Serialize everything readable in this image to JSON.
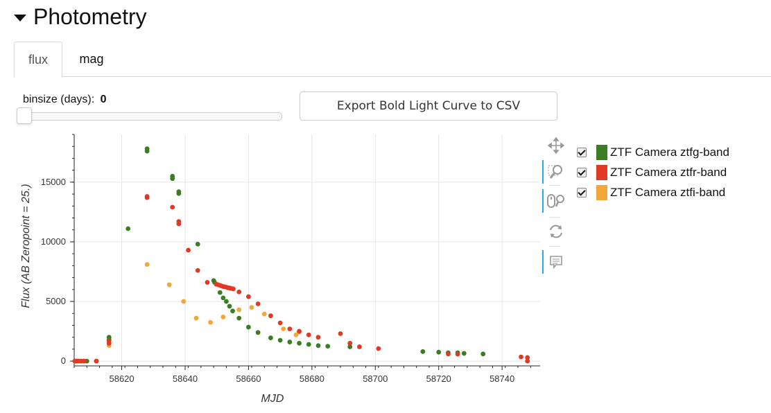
{
  "section": {
    "title": "Photometry"
  },
  "tabs": [
    {
      "label": "flux"
    },
    {
      "label": "mag"
    }
  ],
  "binsize": {
    "label": "binsize (days):",
    "value": "0"
  },
  "export_button": {
    "label": "Export Bold Light Curve to CSV"
  },
  "toolbar": {
    "tools": [
      "pan-icon",
      "box-zoom-icon",
      "wheel-zoom-icon",
      "reset-icon",
      "hover-icon"
    ]
  },
  "chart_data": {
    "type": "scatter",
    "xlabel": "MJD",
    "ylabel": "Flux (AB Zeropoint = 25.)",
    "xlim": [
      58605,
      58752
    ],
    "ylim": [
      -400,
      19000
    ],
    "xticks": [
      58620,
      58640,
      58660,
      58680,
      58700,
      58720,
      58740
    ],
    "yticks": [
      0,
      5000,
      10000,
      15000
    ],
    "grid": true,
    "legend_position": "right",
    "series": [
      {
        "name": "ZTF Camera ztfg-band",
        "color": "#3a7d22",
        "points": [
          [
            58605.5,
            0
          ],
          [
            58606.2,
            0
          ],
          [
            58607,
            0
          ],
          [
            58608,
            0
          ],
          [
            58609,
            0
          ],
          [
            58612,
            0
          ],
          [
            58616,
            2000
          ],
          [
            58616,
            1800
          ],
          [
            58622,
            11100
          ],
          [
            58628,
            17800
          ],
          [
            58628,
            17600
          ],
          [
            58636,
            15500
          ],
          [
            58636,
            15300
          ],
          [
            58638,
            14200
          ],
          [
            58638,
            14050
          ],
          [
            58644,
            9800
          ],
          [
            58649,
            6750
          ],
          [
            58649.3,
            6600
          ],
          [
            58651,
            5750
          ],
          [
            58652,
            5300
          ],
          [
            58653,
            5000
          ],
          [
            58654,
            4600
          ],
          [
            58655,
            4200
          ],
          [
            58657,
            3600
          ],
          [
            58660,
            2850
          ],
          [
            58663,
            2400
          ],
          [
            58667,
            1950
          ],
          [
            58670,
            1750
          ],
          [
            58673,
            1600
          ],
          [
            58676,
            1500
          ],
          [
            58679,
            1400
          ],
          [
            58682,
            1300
          ],
          [
            58685,
            1250
          ],
          [
            58692,
            1200
          ],
          [
            58715,
            800
          ],
          [
            58720,
            750
          ],
          [
            58723,
            700
          ],
          [
            58726,
            700
          ],
          [
            58728,
            650
          ],
          [
            58734,
            600
          ]
        ]
      },
      {
        "name": "ZTF Camera ztfr-band",
        "color": "#e03a24",
        "points": [
          [
            58605.2,
            0
          ],
          [
            58605.7,
            0
          ],
          [
            58606.5,
            0
          ],
          [
            58607.3,
            0
          ],
          [
            58608.2,
            0
          ],
          [
            58612,
            0
          ],
          [
            58616,
            1700
          ],
          [
            58616,
            1500
          ],
          [
            58628,
            13800
          ],
          [
            58628,
            13700
          ],
          [
            58636,
            12900
          ],
          [
            58638,
            11700
          ],
          [
            58638,
            11500
          ],
          [
            58641,
            9300
          ],
          [
            58644,
            7600
          ],
          [
            58647,
            6600
          ],
          [
            58649.8,
            6450
          ],
          [
            58650.4,
            6400
          ],
          [
            58651,
            6350
          ],
          [
            58651.5,
            6300
          ],
          [
            58652,
            6250
          ],
          [
            58652.5,
            6230
          ],
          [
            58653,
            6200
          ],
          [
            58653.5,
            6150
          ],
          [
            58654,
            6130
          ],
          [
            58654.5,
            6100
          ],
          [
            58655.2,
            6050
          ],
          [
            58657,
            5800
          ],
          [
            58660,
            5400
          ],
          [
            58663,
            4800
          ],
          [
            58667,
            3800
          ],
          [
            58670,
            3200
          ],
          [
            58673,
            2700
          ],
          [
            58676,
            2500
          ],
          [
            58679,
            2200
          ],
          [
            58682,
            2000
          ],
          [
            58689,
            2300
          ],
          [
            58692,
            1500
          ],
          [
            58695,
            1200
          ],
          [
            58701,
            1050
          ],
          [
            58723,
            600
          ],
          [
            58726,
            580
          ],
          [
            58746,
            350
          ],
          [
            58748,
            300
          ],
          [
            58748,
            0
          ]
        ]
      },
      {
        "name": "ZTF Camera ztfi-band",
        "color": "#f2a73b",
        "points": [
          [
            58606,
            0
          ],
          [
            58607,
            0
          ],
          [
            58608,
            0
          ],
          [
            58612,
            0
          ],
          [
            58616,
            1300
          ],
          [
            58628,
            8100
          ],
          [
            58635,
            6400
          ],
          [
            58639.5,
            5000
          ],
          [
            58643.5,
            3600
          ],
          [
            58648,
            3250
          ],
          [
            58652,
            3700
          ],
          [
            58657,
            4300
          ],
          [
            58661,
            4500
          ],
          [
            58665,
            3950
          ],
          [
            58671,
            2700
          ],
          [
            58675,
            2200
          ],
          [
            58676,
            2450
          ]
        ]
      }
    ]
  }
}
